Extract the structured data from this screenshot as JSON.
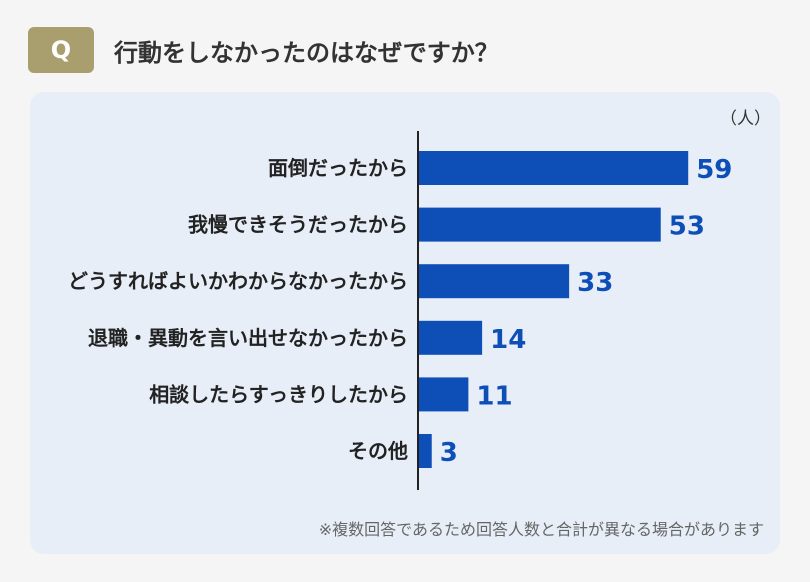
{
  "question": {
    "badge": "Q",
    "title": "行動をしなかったのはなぜですか？"
  },
  "colors": {
    "badge": "#a99f6e",
    "panel": "#e7eef8",
    "bar": "#0d4fb7",
    "value_text": "#0d4fb7",
    "axis": "#222222"
  },
  "unit": "（人）",
  "note": "※複数回答であるため回答人数と合計が異なる場合があります",
  "chart_data": {
    "type": "bar",
    "orientation": "horizontal",
    "categories": [
      "面倒だったから",
      "我慢できそうだったから",
      "どうすればよいかわからなかったから",
      "退職・異動を言い出せなかったから",
      "相談したらすっきりしたから",
      "その他"
    ],
    "values": [
      59,
      53,
      33,
      14,
      11,
      3
    ],
    "ylabel": "（人）",
    "xlim": [
      0,
      64
    ],
    "grid": false,
    "legend": "none"
  }
}
